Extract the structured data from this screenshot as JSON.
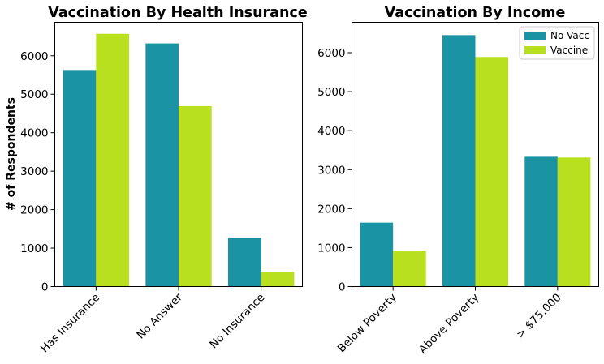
{
  "colors": {
    "no_vacc": "#1a93a5",
    "vaccine": "#b8e01e"
  },
  "chart_data": [
    {
      "type": "bar",
      "title": "Vaccination By Health Insurance",
      "ylabel": "# of Respondents",
      "xlabel": "",
      "categories": [
        "Has Insurance",
        "No Answer",
        "No Insurance"
      ],
      "series": [
        {
          "name": "No Vacc",
          "values": [
            5630,
            6320,
            1270
          ]
        },
        {
          "name": "Vaccine",
          "values": [
            6570,
            4690,
            390
          ]
        }
      ],
      "ylim": [
        0,
        6870
      ],
      "yticks": [
        0,
        1000,
        2000,
        3000,
        4000,
        5000,
        6000
      ],
      "legend": "none"
    },
    {
      "type": "bar",
      "title": "Vaccination By Income",
      "ylabel": "",
      "xlabel": "",
      "categories": [
        "Below Poverty",
        "Above Poverty",
        "> $75,000"
      ],
      "series": [
        {
          "name": "No Vacc",
          "values": [
            1640,
            6450,
            3330
          ]
        },
        {
          "name": "Vaccine",
          "values": [
            920,
            5890,
            3310
          ]
        }
      ],
      "ylim": [
        0,
        6780
      ],
      "yticks": [
        0,
        1000,
        2000,
        3000,
        4000,
        5000,
        6000
      ],
      "legend": "top-right"
    }
  ]
}
